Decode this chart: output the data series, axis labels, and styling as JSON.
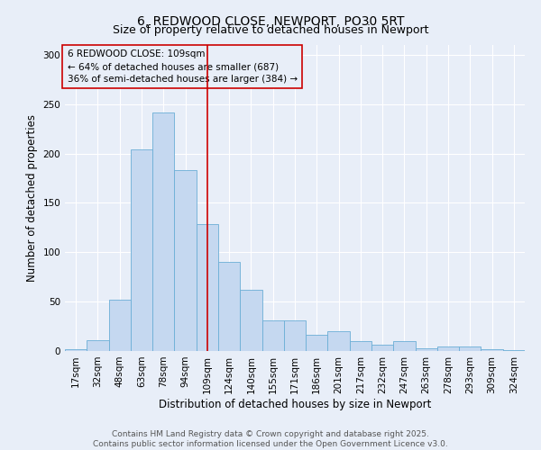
{
  "title_line1": "6, REDWOOD CLOSE, NEWPORT, PO30 5RT",
  "title_line2": "Size of property relative to detached houses in Newport",
  "xlabel": "Distribution of detached houses by size in Newport",
  "ylabel": "Number of detached properties",
  "categories": [
    "17sqm",
    "32sqm",
    "48sqm",
    "63sqm",
    "78sqm",
    "94sqm",
    "109sqm",
    "124sqm",
    "140sqm",
    "155sqm",
    "171sqm",
    "186sqm",
    "201sqm",
    "217sqm",
    "232sqm",
    "247sqm",
    "263sqm",
    "278sqm",
    "293sqm",
    "309sqm",
    "324sqm"
  ],
  "values": [
    2,
    11,
    52,
    204,
    242,
    183,
    129,
    90,
    62,
    31,
    31,
    16,
    20,
    10,
    6,
    10,
    3,
    5,
    5,
    2,
    1
  ],
  "bar_color": "#c5d8f0",
  "bar_edge_color": "#6baed6",
  "vline_x_idx": 6,
  "vline_color": "#cc0000",
  "annotation_title": "6 REDWOOD CLOSE: 109sqm",
  "annotation_line1": "← 64% of detached houses are smaller (687)",
  "annotation_line2": "36% of semi-detached houses are larger (384) →",
  "annotation_box_color": "#cc0000",
  "ylim": [
    0,
    310
  ],
  "yticks": [
    0,
    50,
    100,
    150,
    200,
    250,
    300
  ],
  "footer_line1": "Contains HM Land Registry data © Crown copyright and database right 2025.",
  "footer_line2": "Contains public sector information licensed under the Open Government Licence v3.0.",
  "bg_color": "#e8eef8",
  "grid_color": "#ffffff",
  "title_fontsize": 10,
  "subtitle_fontsize": 9,
  "axis_label_fontsize": 8.5,
  "tick_fontsize": 7.5,
  "annotation_fontsize": 7.5,
  "footer_fontsize": 6.5
}
